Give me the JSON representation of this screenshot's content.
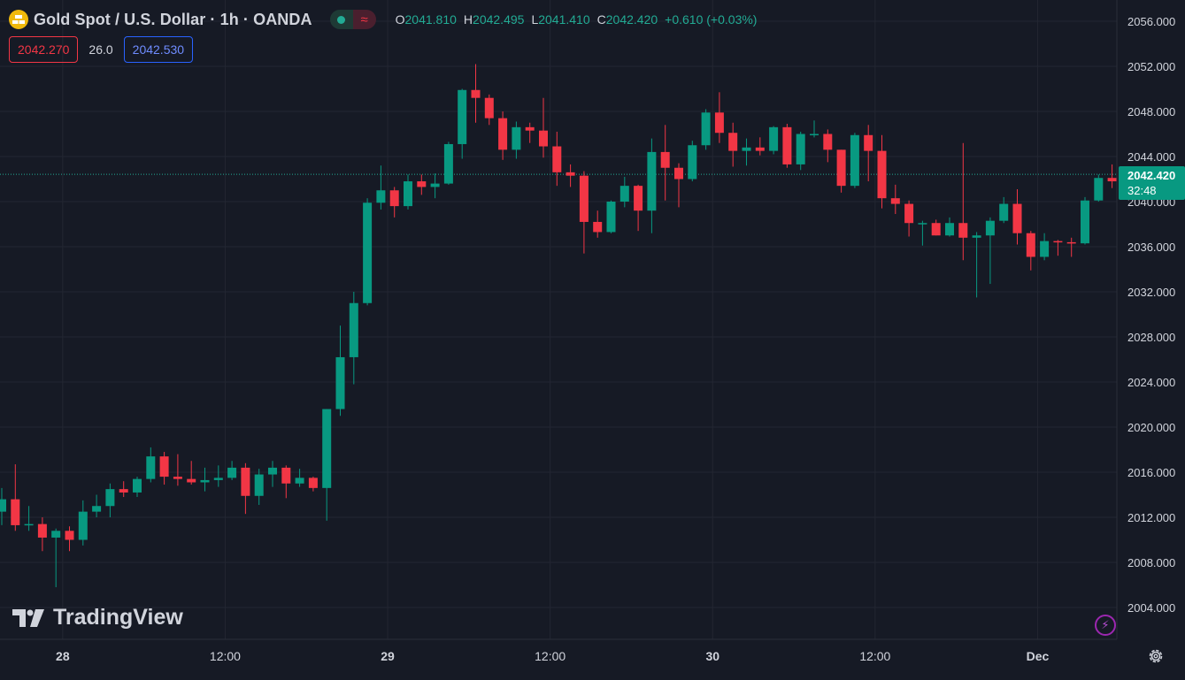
{
  "header": {
    "title": "Gold Spot / U.S. Dollar · 1h · OANDA",
    "ohlc": {
      "o_label": "O",
      "o": "2041.810",
      "h_label": "H",
      "h": "2042.495",
      "l_label": "L",
      "l": "2041.410",
      "c_label": "C",
      "c": "2042.420",
      "change": "+0.610 (+0.03%)"
    }
  },
  "quotes": {
    "sell": "2042.270",
    "spread": "26.0",
    "buy": "2042.530"
  },
  "watermark": "TradingView",
  "current_price": {
    "price": "2042.420",
    "countdown": "32:48"
  },
  "colors": {
    "up": "#089981",
    "down": "#f23645",
    "background": "#161a25",
    "grid": "#232632"
  },
  "icons": {
    "symbol": "gold-bars-icon",
    "flash": "lightning-icon",
    "settings": "gear-icon"
  },
  "chart_data": {
    "type": "candlestick",
    "ylim": [
      2001.5,
      2057.5
    ],
    "y_ticks": [
      "2004.000",
      "2008.000",
      "2012.000",
      "2016.000",
      "2020.000",
      "2024.000",
      "2028.000",
      "2032.000",
      "2036.000",
      "2040.000",
      "2044.000",
      "2048.000",
      "2052.000",
      "2056.000"
    ],
    "x_ticks": [
      {
        "label": "28",
        "index": 4.5
      },
      {
        "label": "12:00",
        "index": 16.5
      },
      {
        "label": "29",
        "index": 28.5
      },
      {
        "label": "12:00",
        "index": 40.5
      },
      {
        "label": "30",
        "index": 52.5
      },
      {
        "label": "12:00",
        "index": 64.5
      },
      {
        "label": "Dec",
        "index": 76.5
      }
    ],
    "last_price": 2042.42,
    "candles": [
      [
        2012.5,
        2013.6,
        2011.3,
        2014.6
      ],
      [
        2013.6,
        2011.3,
        2010.8,
        2016.7
      ],
      [
        2011.3,
        2011.4,
        2010.8,
        2013.0
      ],
      [
        2011.4,
        2010.2,
        2009.0,
        2012.0
      ],
      [
        2010.2,
        2010.8,
        2005.8,
        2011.0
      ],
      [
        2010.8,
        2010.0,
        2009.0,
        2011.2
      ],
      [
        2010.0,
        2012.5,
        2009.5,
        2013.5
      ],
      [
        2012.5,
        2013.0,
        2012.0,
        2014.0
      ],
      [
        2013.0,
        2014.5,
        2012.0,
        2015.0
      ],
      [
        2014.5,
        2014.2,
        2013.8,
        2015.2
      ],
      [
        2014.2,
        2015.4,
        2013.8,
        2015.6
      ],
      [
        2015.4,
        2017.4,
        2015.1,
        2018.2
      ],
      [
        2017.4,
        2015.6,
        2014.9,
        2017.8
      ],
      [
        2015.6,
        2015.4,
        2014.8,
        2017.6
      ],
      [
        2015.4,
        2015.1,
        2014.9,
        2017.0
      ],
      [
        2015.1,
        2015.3,
        2014.3,
        2016.4
      ],
      [
        2015.3,
        2015.5,
        2014.7,
        2016.6
      ],
      [
        2015.5,
        2016.4,
        2015.3,
        2017.0
      ],
      [
        2016.4,
        2013.9,
        2012.3,
        2016.8
      ],
      [
        2013.9,
        2015.8,
        2013.1,
        2016.3
      ],
      [
        2015.8,
        2016.4,
        2014.7,
        2017.0
      ],
      [
        2016.4,
        2015.0,
        2013.7,
        2016.6
      ],
      [
        2015.0,
        2015.5,
        2014.7,
        2016.3
      ],
      [
        2015.5,
        2014.6,
        2014.3,
        2015.6
      ],
      [
        2014.6,
        2021.6,
        2011.7,
        2021.6
      ],
      [
        2021.6,
        2026.2,
        2021.0,
        2029.0
      ],
      [
        2026.2,
        2031.0,
        2023.8,
        2032.0
      ],
      [
        2031.0,
        2039.9,
        2030.8,
        2040.3
      ],
      [
        2039.9,
        2041.0,
        2039.3,
        2043.2
      ],
      [
        2041.0,
        2039.6,
        2038.6,
        2041.3
      ],
      [
        2039.6,
        2041.8,
        2039.3,
        2042.4
      ],
      [
        2041.8,
        2041.3,
        2040.6,
        2042.4
      ],
      [
        2041.3,
        2041.6,
        2040.3,
        2042.5
      ],
      [
        2041.6,
        2045.1,
        2041.5,
        2045.3
      ],
      [
        2045.1,
        2049.9,
        2043.8,
        2050.0
      ],
      [
        2049.9,
        2049.2,
        2047.0,
        2052.2
      ],
      [
        2049.2,
        2047.4,
        2046.8,
        2049.5
      ],
      [
        2047.4,
        2044.6,
        2043.7,
        2048.0
      ],
      [
        2044.6,
        2046.6,
        2043.8,
        2047.1
      ],
      [
        2046.6,
        2046.3,
        2045.2,
        2047.0
      ],
      [
        2046.3,
        2044.9,
        2043.9,
        2049.2
      ],
      [
        2044.9,
        2042.6,
        2041.4,
        2046.2
      ],
      [
        2042.6,
        2042.3,
        2041.3,
        2043.3
      ],
      [
        2042.3,
        2038.2,
        2035.4,
        2042.7
      ],
      [
        2038.2,
        2037.3,
        2036.8,
        2039.2
      ],
      [
        2037.3,
        2040.0,
        2037.2,
        2040.1
      ],
      [
        2040.0,
        2041.4,
        2039.5,
        2042.2
      ],
      [
        2041.4,
        2039.2,
        2037.4,
        2041.5
      ],
      [
        2039.2,
        2044.4,
        2037.2,
        2045.6
      ],
      [
        2044.4,
        2043.0,
        2040.1,
        2046.8
      ],
      [
        2043.0,
        2042.0,
        2039.5,
        2043.4
      ],
      [
        2042.0,
        2045.0,
        2041.8,
        2045.4
      ],
      [
        2045.0,
        2047.9,
        2044.6,
        2048.2
      ],
      [
        2047.9,
        2046.1,
        2045.2,
        2049.7
      ],
      [
        2046.1,
        2044.5,
        2043.1,
        2047.0
      ],
      [
        2044.5,
        2044.8,
        2043.2,
        2045.6
      ],
      [
        2044.8,
        2044.5,
        2044.1,
        2045.7
      ],
      [
        2044.5,
        2046.6,
        2044.2,
        2046.7
      ],
      [
        2046.6,
        2043.3,
        2043.0,
        2046.9
      ],
      [
        2043.3,
        2046.0,
        2042.8,
        2046.2
      ],
      [
        2046.0,
        2046.0,
        2045.7,
        2047.2
      ],
      [
        2046.0,
        2044.6,
        2043.5,
        2046.4
      ],
      [
        2044.6,
        2041.4,
        2040.8,
        2044.6
      ],
      [
        2041.4,
        2045.9,
        2041.2,
        2046.1
      ],
      [
        2045.9,
        2044.5,
        2041.8,
        2046.8
      ],
      [
        2044.5,
        2040.3,
        2039.4,
        2045.9
      ],
      [
        2040.3,
        2039.8,
        2038.9,
        2041.5
      ],
      [
        2039.8,
        2038.1,
        2036.9,
        2040.1
      ],
      [
        2038.1,
        2038.1,
        2036.1,
        2038.3
      ],
      [
        2038.1,
        2037.0,
        2037.0,
        2038.4
      ],
      [
        2037.0,
        2038.1,
        2036.9,
        2038.6
      ],
      [
        2038.1,
        2036.8,
        2034.8,
        2045.2
      ],
      [
        2036.8,
        2037.0,
        2031.5,
        2037.3
      ],
      [
        2037.0,
        2038.3,
        2032.7,
        2038.6
      ],
      [
        2038.3,
        2039.8,
        2038.1,
        2040.4
      ],
      [
        2039.8,
        2037.2,
        2036.2,
        2041.1
      ],
      [
        2037.2,
        2035.1,
        2033.9,
        2037.4
      ],
      [
        2035.1,
        2036.5,
        2034.8,
        2037.2
      ],
      [
        2036.5,
        2036.4,
        2035.2,
        2036.6
      ],
      [
        2036.4,
        2036.3,
        2035.1,
        2036.8
      ],
      [
        2036.3,
        2040.1,
        2036.2,
        2040.4
      ],
      [
        2040.1,
        2042.1,
        2040.0,
        2042.4
      ],
      [
        2042.1,
        2041.8,
        2041.2,
        2043.3
      ],
      [
        2041.8,
        2042.4,
        2041.4,
        2042.5
      ]
    ]
  }
}
